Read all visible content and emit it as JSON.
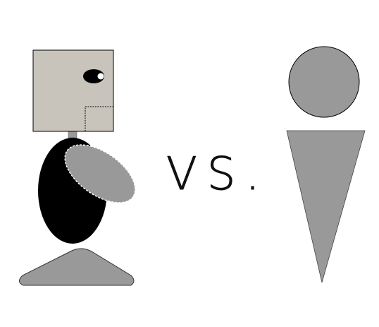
{
  "caption": "VS."
}
